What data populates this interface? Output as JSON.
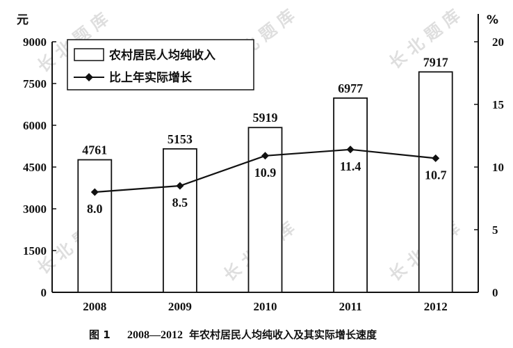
{
  "chart_data": {
    "type": "bar",
    "categories": [
      "2008",
      "2009",
      "2010",
      "2011",
      "2012"
    ],
    "series": [
      {
        "name": "农村居民人均纯收入",
        "type": "bar",
        "axis": "left",
        "values": [
          4761,
          5153,
          5919,
          6977,
          7917
        ]
      },
      {
        "name": "比上年实际增长",
        "type": "line",
        "axis": "right",
        "values": [
          8.0,
          8.5,
          10.9,
          11.4,
          10.7
        ]
      }
    ],
    "bar_labels": [
      "4761",
      "5153",
      "5919",
      "6977",
      "7917"
    ],
    "line_labels": [
      "8.0",
      "8.5",
      "10.9",
      "11.4",
      "10.7"
    ],
    "y_left": {
      "unit": "元",
      "ylim": [
        0,
        9000
      ],
      "ticks": [
        "0",
        "1500",
        "3000",
        "4500",
        "6000",
        "7500",
        "9000"
      ]
    },
    "y_right": {
      "unit": "%",
      "ylim": [
        0,
        20
      ],
      "ticks": [
        "0",
        "5",
        "10",
        "15",
        "20"
      ]
    },
    "legend": {
      "placement": "top-left",
      "items": [
        "农村居民人均纯收入",
        "比上年实际增长"
      ]
    },
    "caption": {
      "label": "图 1",
      "years": "2008—2012",
      "text": "年农村居民人均纯收入及其实际增长速度"
    },
    "watermark": "长 北 题 库",
    "grid": false
  }
}
